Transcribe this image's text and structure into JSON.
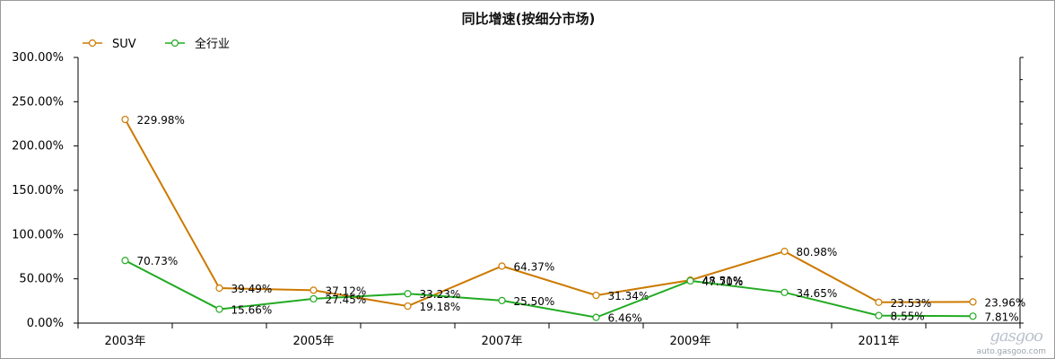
{
  "chart_data": {
    "type": "line",
    "title": "同比增速(按细分市场)",
    "legend_position": "top-left",
    "xlabel": "",
    "ylabel": "",
    "ylim": [
      0,
      300
    ],
    "y_ticks": [
      "0.00%",
      "50.00%",
      "100.00%",
      "150.00%",
      "200.00%",
      "250.00%",
      "300.00%"
    ],
    "x": [
      "2003年",
      "2004年",
      "2005年",
      "2006年",
      "2007年",
      "2008年",
      "2009年",
      "2010年",
      "2011年",
      "2012年"
    ],
    "x_tick_labels": [
      "2003年",
      "2005年",
      "2007年",
      "2009年",
      "2011年"
    ],
    "series": [
      {
        "name": "SUV",
        "color": "#cc7a00",
        "values": [
          229.98,
          39.49,
          37.12,
          19.18,
          64.37,
          31.34,
          48.51,
          80.98,
          23.53,
          23.96
        ],
        "labels": [
          "229.98%",
          "39.49%",
          "37.12%",
          "19.18%",
          "64.37%",
          "31.34%",
          "48.51%",
          "80.98%",
          "23.53%",
          "23.96%"
        ]
      },
      {
        "name": "全行业",
        "color": "#22aa22",
        "values": [
          70.73,
          15.66,
          27.45,
          33.23,
          25.5,
          6.46,
          47.7,
          34.65,
          8.55,
          7.81
        ],
        "labels": [
          "70.73%",
          "15.66%",
          "27.45%",
          "33.23%",
          "25.50%",
          "6.46%",
          "47.70%",
          "34.65%",
          "8.55%",
          "7.81%"
        ]
      }
    ],
    "grid": false
  },
  "watermark": {
    "logo": "gasgoo",
    "url": "auto.gasgoo.com"
  }
}
